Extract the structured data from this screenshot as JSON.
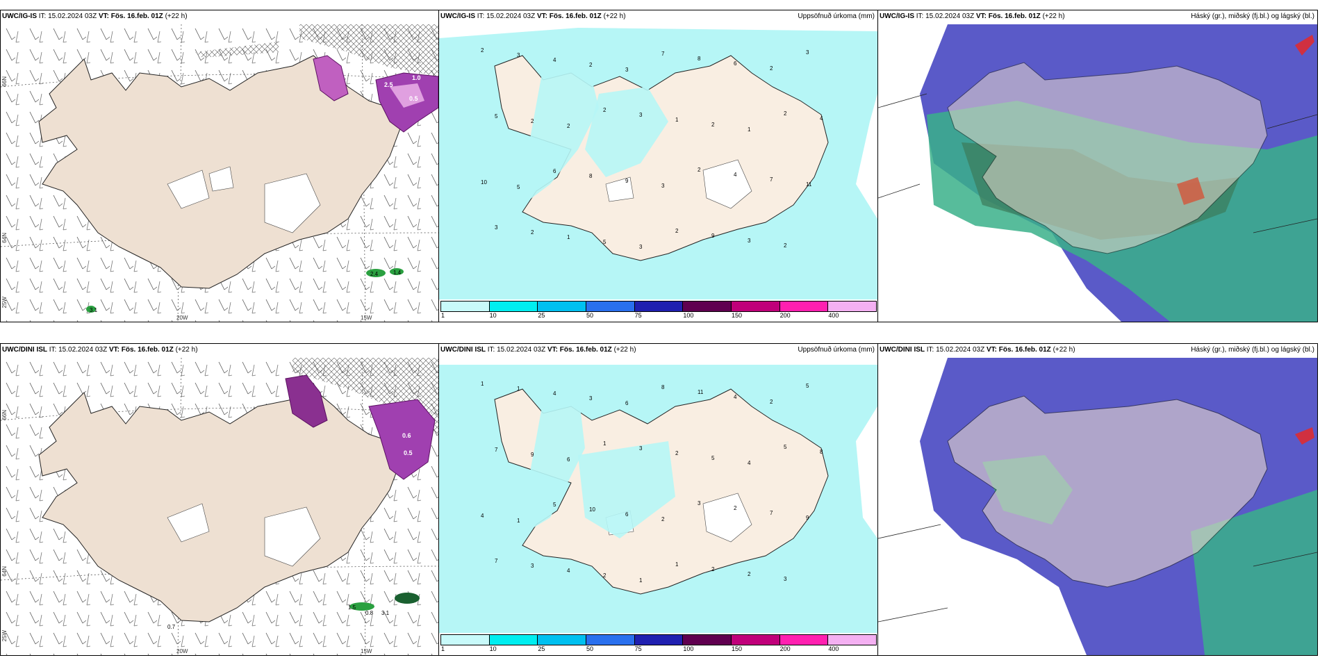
{
  "rows": [
    {
      "model": "UWC/IG-IS",
      "issue": "IT: 15.02.2024 03Z",
      "vt_label": "VT:",
      "vt_value": "Fös. 16.feb. 01Z",
      "lead": "(+22 h)"
    },
    {
      "model": "UWC/DINI ISL",
      "issue": "IT: 15.02.2024 03Z",
      "vt_label": "VT:",
      "vt_value": "Fös. 16.feb. 01Z",
      "lead": "(+22 h)"
    }
  ],
  "panel_titles": {
    "precip": "Uppsöfnuð úrkoma (mm)",
    "cloud": "Háský (gr.), miðský (fj.bl.) og lágský (bl.)"
  },
  "axis_labels": {
    "lat_top": "66N",
    "lat_bottom": "64N",
    "lat_corner": "25W",
    "lon_left": "20W",
    "lon_right": "15W"
  },
  "colorbar": {
    "ticks": [
      "1",
      "10",
      "25",
      "50",
      "75",
      "100",
      "150",
      "200",
      "400"
    ],
    "colors": [
      "#c8fafa",
      "#00eef0",
      "#00c0f0",
      "#2a70ee",
      "#2020b0",
      "#600050",
      "#c0007a",
      "#ff20b0",
      "#f4b0f2"
    ]
  },
  "wind_panel_values": {
    "top": [
      "1.0",
      "0.5",
      "2.5",
      "3.1",
      "2.4",
      "1.4"
    ],
    "bottom": [
      "0.6",
      "0.5",
      "1.5",
      "0.8",
      "3.1",
      "0.7"
    ]
  },
  "precip_values": {
    "top": [
      "2",
      "3",
      "4",
      "2",
      "3",
      "7",
      "8",
      "6",
      "2",
      "3",
      "5",
      "2",
      "2",
      "2",
      "3",
      "1",
      "2",
      "1",
      "2",
      "4",
      "10",
      "5",
      "6",
      "8",
      "9",
      "3",
      "2",
      "4",
      "7",
      "11",
      "3",
      "2",
      "1",
      "5",
      "3",
      "2",
      "9",
      "3",
      "2"
    ],
    "bottom": [
      "1",
      "1",
      "4",
      "3",
      "6",
      "8",
      "11",
      "4",
      "2",
      "5",
      "7",
      "9",
      "6",
      "1",
      "3",
      "2",
      "5",
      "4",
      "5",
      "8",
      "4",
      "1",
      "5",
      "10",
      "6",
      "2",
      "3",
      "2",
      "7",
      "9",
      "7",
      "3",
      "4",
      "2",
      "1",
      "1",
      "2",
      "2",
      "3"
    ]
  }
}
